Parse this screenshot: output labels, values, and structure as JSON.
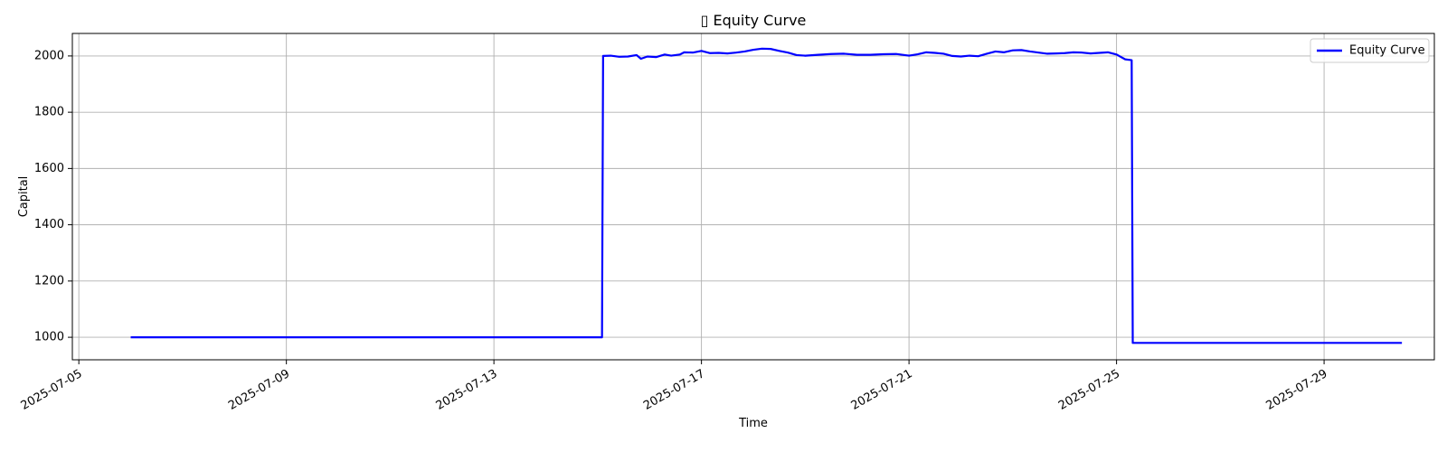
{
  "chart_data": {
    "type": "line",
    "title": "▯ Equity Curve",
    "xlabel": "Time",
    "ylabel": "Capital",
    "xlim": [
      "2025-07-04T21:00",
      "2025-07-31T03:00"
    ],
    "ylim": [
      920,
      2080
    ],
    "x_ticks": [
      "2025-07-05",
      "2025-07-09",
      "2025-07-13",
      "2025-07-17",
      "2025-07-21",
      "2025-07-25",
      "2025-07-29"
    ],
    "y_ticks": [
      1000,
      1200,
      1400,
      1600,
      1800,
      2000
    ],
    "grid": true,
    "legend_position": "top-right",
    "colors": {
      "line": "#0000ff",
      "grid": "#b0b0b0",
      "axes": "#000000"
    },
    "series": [
      {
        "name": "Equity Curve",
        "points": [
          [
            "2025-07-06T00:00",
            1000
          ],
          [
            "2025-07-08T00:00",
            1000
          ],
          [
            "2025-07-10T00:00",
            1000
          ],
          [
            "2025-07-12T00:00",
            1000
          ],
          [
            "2025-07-14T00:00",
            1000
          ],
          [
            "2025-07-15T02:00",
            1000
          ],
          [
            "2025-07-15T02:30",
            2000
          ],
          [
            "2025-07-15T06:00",
            2001
          ],
          [
            "2025-07-15T10:00",
            1997
          ],
          [
            "2025-07-15T14:00",
            1998
          ],
          [
            "2025-07-15T18:00",
            2003
          ],
          [
            "2025-07-15T20:00",
            1990
          ],
          [
            "2025-07-15T23:00",
            1998
          ],
          [
            "2025-07-16T03:00",
            1996
          ],
          [
            "2025-07-16T07:00",
            2005
          ],
          [
            "2025-07-16T10:00",
            2001
          ],
          [
            "2025-07-16T14:00",
            2005
          ],
          [
            "2025-07-16T16:00",
            2013
          ],
          [
            "2025-07-16T20:00",
            2012
          ],
          [
            "2025-07-17T00:00",
            2018
          ],
          [
            "2025-07-17T04:00",
            2010
          ],
          [
            "2025-07-17T08:00",
            2011
          ],
          [
            "2025-07-17T12:00",
            2009
          ],
          [
            "2025-07-17T16:00",
            2012
          ],
          [
            "2025-07-17T20:00",
            2016
          ],
          [
            "2025-07-18T00:00",
            2022
          ],
          [
            "2025-07-18T04:00",
            2026
          ],
          [
            "2025-07-18T08:00",
            2025
          ],
          [
            "2025-07-18T12:00",
            2018
          ],
          [
            "2025-07-18T16:00",
            2012
          ],
          [
            "2025-07-18T20:00",
            2003
          ],
          [
            "2025-07-19T00:00",
            2001
          ],
          [
            "2025-07-19T06:00",
            2004
          ],
          [
            "2025-07-19T12:00",
            2007
          ],
          [
            "2025-07-19T18:00",
            2008
          ],
          [
            "2025-07-20T00:00",
            2004
          ],
          [
            "2025-07-20T06:00",
            2004
          ],
          [
            "2025-07-20T12:00",
            2006
          ],
          [
            "2025-07-20T18:00",
            2007
          ],
          [
            "2025-07-21T00:00",
            2001
          ],
          [
            "2025-07-21T04:00",
            2006
          ],
          [
            "2025-07-21T08:00",
            2013
          ],
          [
            "2025-07-21T12:00",
            2011
          ],
          [
            "2025-07-21T16:00",
            2008
          ],
          [
            "2025-07-21T20:00",
            2000
          ],
          [
            "2025-07-22T00:00",
            1998
          ],
          [
            "2025-07-22T04:00",
            2001
          ],
          [
            "2025-07-22T08:00",
            1999
          ],
          [
            "2025-07-22T12:00",
            2008
          ],
          [
            "2025-07-22T16:00",
            2016
          ],
          [
            "2025-07-22T20:00",
            2013
          ],
          [
            "2025-07-23T00:00",
            2020
          ],
          [
            "2025-07-23T04:00",
            2021
          ],
          [
            "2025-07-23T08:00",
            2016
          ],
          [
            "2025-07-23T12:00",
            2012
          ],
          [
            "2025-07-23T16:00",
            2008
          ],
          [
            "2025-07-23T20:00",
            2009
          ],
          [
            "2025-07-24T00:00",
            2010
          ],
          [
            "2025-07-24T04:00",
            2013
          ],
          [
            "2025-07-24T08:00",
            2012
          ],
          [
            "2025-07-24T12:00",
            2009
          ],
          [
            "2025-07-24T16:00",
            2011
          ],
          [
            "2025-07-24T20:00",
            2013
          ],
          [
            "2025-07-25T00:00",
            2005
          ],
          [
            "2025-07-25T04:00",
            1988
          ],
          [
            "2025-07-25T07:00",
            1985
          ],
          [
            "2025-07-25T07:30",
            980
          ],
          [
            "2025-07-26T00:00",
            980
          ],
          [
            "2025-07-27T00:00",
            980
          ],
          [
            "2025-07-28T00:00",
            980
          ],
          [
            "2025-07-29T00:00",
            980
          ],
          [
            "2025-07-30T12:00",
            980
          ]
        ]
      }
    ]
  }
}
